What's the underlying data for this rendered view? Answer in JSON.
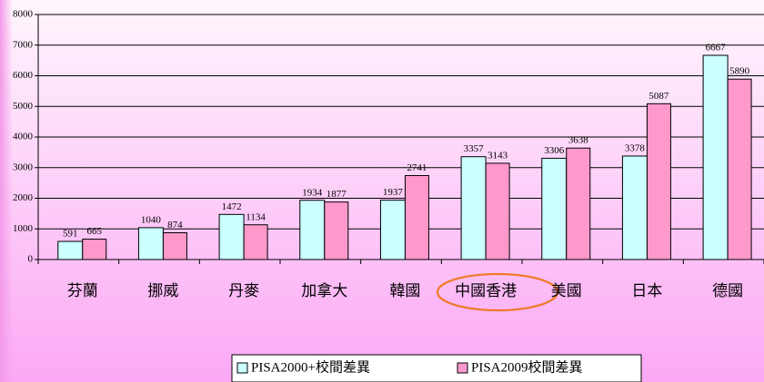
{
  "chart_data": {
    "type": "bar",
    "categories": [
      "芬蘭",
      "挪威",
      "丹麥",
      "加拿大",
      "韓國",
      "中國香港",
      "美國",
      "日本",
      "德國"
    ],
    "series": [
      {
        "name": "PISA2000+校間差異",
        "color": "#ccffff",
        "values": [
          591,
          1040,
          1472,
          1934,
          1937,
          3357,
          3306,
          3378,
          6667
        ]
      },
      {
        "name": "PISA2009校間差異",
        "color": "#ff99cc",
        "values": [
          665,
          874,
          1134,
          1877,
          2741,
          3143,
          3638,
          5087,
          5890
        ]
      }
    ],
    "ylim": [
      0,
      8000
    ],
    "yticks": [
      0,
      1000,
      2000,
      3000,
      4000,
      5000,
      6000,
      7000,
      8000
    ],
    "grid": true
  }
}
